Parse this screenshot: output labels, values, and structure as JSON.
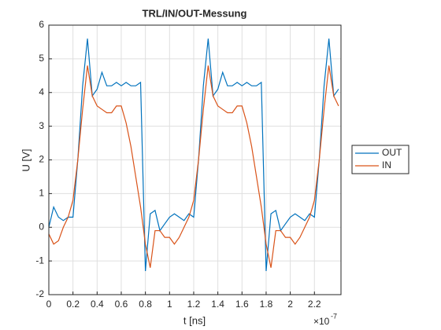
{
  "chart_data": {
    "type": "line",
    "title": "TRL/IN/OUT-Messung",
    "xlabel": "t [ns]",
    "ylabel": "U [V]",
    "x_multiplier": {
      "base": "×10",
      "power": "-7"
    },
    "x": [
      0,
      0.04,
      0.08,
      0.12,
      0.16,
      0.2,
      0.24,
      0.28,
      0.32,
      0.36,
      0.4,
      0.44,
      0.48,
      0.52,
      0.56,
      0.6,
      0.64,
      0.68,
      0.72,
      0.76,
      0.8,
      0.84,
      0.88,
      0.92,
      0.96,
      1.0,
      1.04,
      1.08,
      1.12,
      1.16,
      1.2,
      1.24,
      1.28,
      1.32,
      1.36,
      1.4,
      1.44,
      1.48,
      1.52,
      1.56,
      1.6,
      1.64,
      1.68,
      1.72,
      1.76,
      1.8,
      1.84,
      1.88,
      1.92,
      1.96,
      2.0,
      2.04,
      2.08,
      2.12,
      2.16,
      2.2,
      2.24,
      2.28,
      2.32,
      2.36,
      2.4
    ],
    "series": [
      {
        "name": "OUT",
        "color": "#0072bd",
        "values": [
          0.0,
          0.6,
          0.3,
          0.2,
          0.3,
          0.3,
          2.0,
          4.2,
          5.6,
          3.9,
          4.1,
          4.6,
          4.2,
          4.2,
          4.3,
          4.2,
          4.3,
          4.2,
          4.2,
          4.3,
          -1.3,
          0.4,
          0.5,
          -0.1,
          0.1,
          0.3,
          0.4,
          0.3,
          0.2,
          0.4,
          0.3,
          2.0,
          4.2,
          5.6,
          3.9,
          4.1,
          4.6,
          4.2,
          4.2,
          4.3,
          4.2,
          4.3,
          4.2,
          4.2,
          4.3,
          -1.3,
          0.4,
          0.5,
          -0.1,
          0.1,
          0.3,
          0.4,
          0.3,
          0.2,
          0.4,
          0.3,
          2.0,
          4.2,
          5.6,
          3.9,
          4.1
        ]
      },
      {
        "name": "IN",
        "color": "#d95319",
        "values": [
          -0.2,
          -0.5,
          -0.4,
          0.0,
          0.3,
          0.8,
          2.0,
          3.5,
          4.8,
          3.9,
          3.6,
          3.5,
          3.4,
          3.4,
          3.6,
          3.6,
          3.1,
          2.4,
          1.5,
          0.6,
          -0.5,
          -1.2,
          -0.1,
          -0.1,
          -0.3,
          -0.3,
          -0.5,
          -0.3,
          0.0,
          0.3,
          0.8,
          2.0,
          3.5,
          4.8,
          3.9,
          3.6,
          3.5,
          3.4,
          3.4,
          3.6,
          3.6,
          3.1,
          2.4,
          1.5,
          0.6,
          -0.5,
          -1.2,
          -0.1,
          -0.1,
          -0.3,
          -0.3,
          -0.5,
          -0.3,
          0.0,
          0.3,
          0.8,
          2.0,
          3.5,
          4.8,
          3.9,
          3.6
        ]
      }
    ],
    "xlim": [
      0,
      2.42
    ],
    "xticks": [
      0,
      0.2,
      0.4,
      0.6,
      0.8,
      1,
      1.2,
      1.4,
      1.6,
      1.8,
      2,
      2.2
    ],
    "ylim": [
      -2,
      6
    ],
    "yticks": [
      -2,
      -1,
      0,
      1,
      2,
      3,
      4,
      5,
      6
    ],
    "grid": true,
    "legend": "east-outside"
  }
}
